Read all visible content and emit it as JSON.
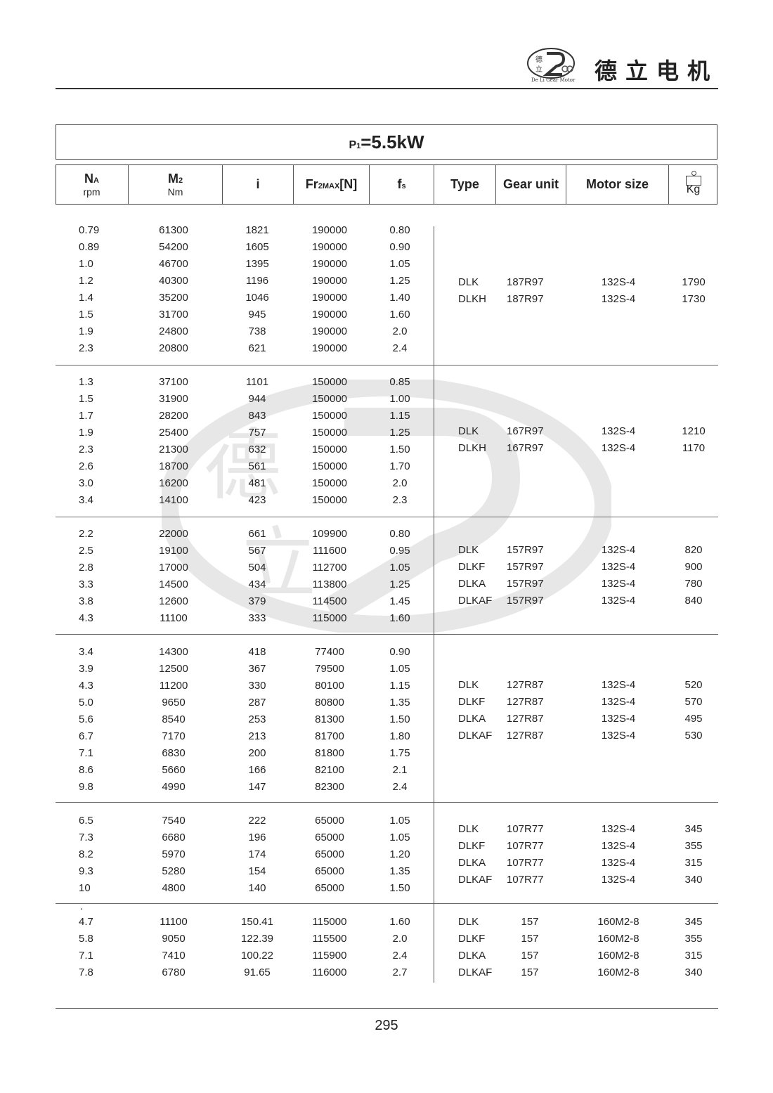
{
  "brand": {
    "logo_text": "De Li Gear Motor",
    "logo_chars": "德立",
    "name": "德立电机"
  },
  "title": {
    "prefix": "P",
    "sub": "1",
    "value": "=5.5kW"
  },
  "headers": {
    "na": "N",
    "na_sub": "A",
    "na_unit": "rpm",
    "m2": "M",
    "m2_sub": "2",
    "m2_unit": "Nm",
    "i": "i",
    "fr": "Fr",
    "fr_sub": "2MAX",
    "fr_tail": "[N]",
    "fs": "f",
    "fs_sub": "s",
    "type": "Type",
    "gear_unit": "Gear unit",
    "motor_size": "Motor size",
    "kg": "Kg"
  },
  "sections": [
    {
      "rows": [
        [
          "0.79",
          "61300",
          "1821",
          "190000",
          "0.80"
        ],
        [
          "0.89",
          "54200",
          "1605",
          "190000",
          "0.90"
        ],
        [
          "1.0",
          "46700",
          "1395",
          "190000",
          "1.05"
        ],
        [
          "1.2",
          "40300",
          "1196",
          "190000",
          "1.25"
        ],
        [
          "1.4",
          "35200",
          "1046",
          "190000",
          "1.40"
        ],
        [
          "1.5",
          "31700",
          "945",
          "190000",
          "1.60"
        ],
        [
          "1.9",
          "24800",
          "738",
          "190000",
          "2.0"
        ],
        [
          "2.3",
          "20800",
          "621",
          "190000",
          "2.4"
        ]
      ],
      "units": [
        [
          "DLK",
          "187R97",
          "132S-4",
          "1790"
        ],
        [
          "DLKH",
          "187R97",
          "132S-4",
          "1730"
        ]
      ]
    },
    {
      "rows": [
        [
          "1.3",
          "37100",
          "1101",
          "150000",
          "0.85"
        ],
        [
          "1.5",
          "31900",
          "944",
          "150000",
          "1.00"
        ],
        [
          "1.7",
          "28200",
          "843",
          "150000",
          "1.15"
        ],
        [
          "1.9",
          "25400",
          "757",
          "150000",
          "1.25"
        ],
        [
          "2.3",
          "21300",
          "632",
          "150000",
          "1.50"
        ],
        [
          "2.6",
          "18700",
          "561",
          "150000",
          "1.70"
        ],
        [
          "3.0",
          "16200",
          "481",
          "150000",
          "2.0"
        ],
        [
          "3.4",
          "14100",
          "423",
          "150000",
          "2.3"
        ]
      ],
      "units": [
        [
          "DLK",
          "167R97",
          "132S-4",
          "1210"
        ],
        [
          "DLKH",
          "167R97",
          "132S-4",
          "1170"
        ]
      ]
    },
    {
      "rows": [
        [
          "2.2",
          "22000",
          "661",
          "109900",
          "0.80"
        ],
        [
          "2.5",
          "19100",
          "567",
          "111600",
          "0.95"
        ],
        [
          "2.8",
          "17000",
          "504",
          "112700",
          "1.05"
        ],
        [
          "3.3",
          "14500",
          "434",
          "113800",
          "1.25"
        ],
        [
          "3.8",
          "12600",
          "379",
          "114500",
          "1.45"
        ],
        [
          "4.3",
          "11100",
          "333",
          "115000",
          "1.60"
        ]
      ],
      "units": [
        [
          "DLK",
          "157R97",
          "132S-4",
          "820"
        ],
        [
          "DLKF",
          "157R97",
          "132S-4",
          "900"
        ],
        [
          "DLKA",
          "157R97",
          "132S-4",
          "780"
        ],
        [
          "DLKAF",
          "157R97",
          "132S-4",
          "840"
        ]
      ]
    },
    {
      "rows": [
        [
          "3.4",
          "14300",
          "418",
          "77400",
          "0.90"
        ],
        [
          "3.9",
          "12500",
          "367",
          "79500",
          "1.05"
        ],
        [
          "4.3",
          "11200",
          "330",
          "80100",
          "1.15"
        ],
        [
          "5.0",
          "9650",
          "287",
          "80800",
          "1.35"
        ],
        [
          "5.6",
          "8540",
          "253",
          "81300",
          "1.50"
        ],
        [
          "6.7",
          "7170",
          "213",
          "81700",
          "1.80"
        ],
        [
          "7.1",
          "6830",
          "200",
          "81800",
          "1.75"
        ],
        [
          "8.6",
          "5660",
          "166",
          "82100",
          "2.1"
        ],
        [
          "9.8",
          "4990",
          "147",
          "82300",
          "2.4"
        ]
      ],
      "units": [
        [
          "DLK",
          "127R87",
          "132S-4",
          "520"
        ],
        [
          "DLKF",
          "127R87",
          "132S-4",
          "570"
        ],
        [
          "DLKA",
          "127R87",
          "132S-4",
          "495"
        ],
        [
          "DLKAF",
          "127R87",
          "132S-4",
          "530"
        ]
      ]
    },
    {
      "rows": [
        [
          "6.5",
          "7540",
          "222",
          "65000",
          "1.05"
        ],
        [
          "7.3",
          "6680",
          "196",
          "65000",
          "1.05"
        ],
        [
          "8.2",
          "5970",
          "174",
          "65000",
          "1.20"
        ],
        [
          "9.3",
          "5280",
          "154",
          "65000",
          "1.35"
        ],
        [
          "10",
          "4800",
          "140",
          "65000",
          "1.50"
        ]
      ],
      "units": [
        [
          "DLK",
          "107R77",
          "132S-4",
          "345"
        ],
        [
          "DLKF",
          "107R77",
          "132S-4",
          "355"
        ],
        [
          "DLKA",
          "107R77",
          "132S-4",
          "315"
        ],
        [
          "DLKAF",
          "107R77",
          "132S-4",
          "340"
        ]
      ]
    },
    {
      "mark": ".",
      "rows": [
        [
          "4.7",
          "11100",
          "150.41",
          "115000",
          "1.60"
        ],
        [
          "5.8",
          "9050",
          "122.39",
          "115500",
          "2.0"
        ],
        [
          "7.1",
          "7410",
          "100.22",
          "115900",
          "2.4"
        ],
        [
          "7.8",
          "6780",
          "91.65",
          "116000",
          "2.7"
        ]
      ],
      "units": [
        [
          "DLK",
          "157",
          "160M2-8",
          "345"
        ],
        [
          "DLKF",
          "157",
          "160M2-8",
          "355"
        ],
        [
          "DLKA",
          "157",
          "160M2-8",
          "315"
        ],
        [
          "DLKAF",
          "157",
          "160M2-8",
          "340"
        ]
      ]
    }
  ],
  "page_number": "295"
}
